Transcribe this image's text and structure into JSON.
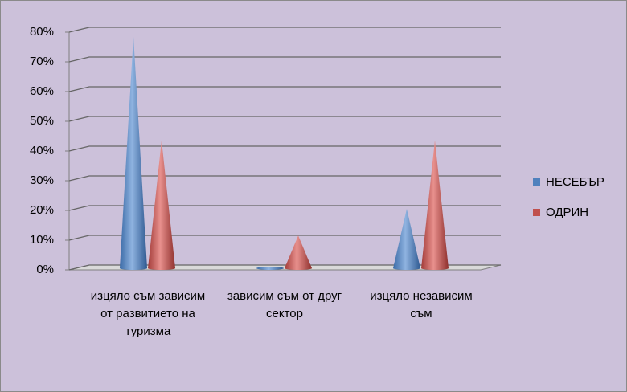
{
  "chart_data": {
    "type": "cone",
    "categories": [
      "изцяло съм зависим от развитието на туризма",
      "зависим съм от друг сектор",
      "изцяло независим съм"
    ],
    "series": [
      {
        "name": "НЕСЕБЪР",
        "color": "#4f81bd",
        "values": [
          78,
          0,
          20
        ]
      },
      {
        "name": "ОДРИН",
        "color": "#c0504d",
        "values": [
          43,
          11,
          43
        ]
      }
    ],
    "ylim": [
      0,
      80
    ],
    "yticks": [
      {
        "value": 0,
        "label": "0%"
      },
      {
        "value": 10,
        "label": "10%"
      },
      {
        "value": 20,
        "label": "20%"
      },
      {
        "value": 30,
        "label": "30%"
      },
      {
        "value": 40,
        "label": "40%"
      },
      {
        "value": 50,
        "label": "50%"
      },
      {
        "value": 60,
        "label": "60%"
      },
      {
        "value": 70,
        "label": "70%"
      },
      {
        "value": 80,
        "label": "80%"
      }
    ],
    "grid": true,
    "legend": "right"
  }
}
